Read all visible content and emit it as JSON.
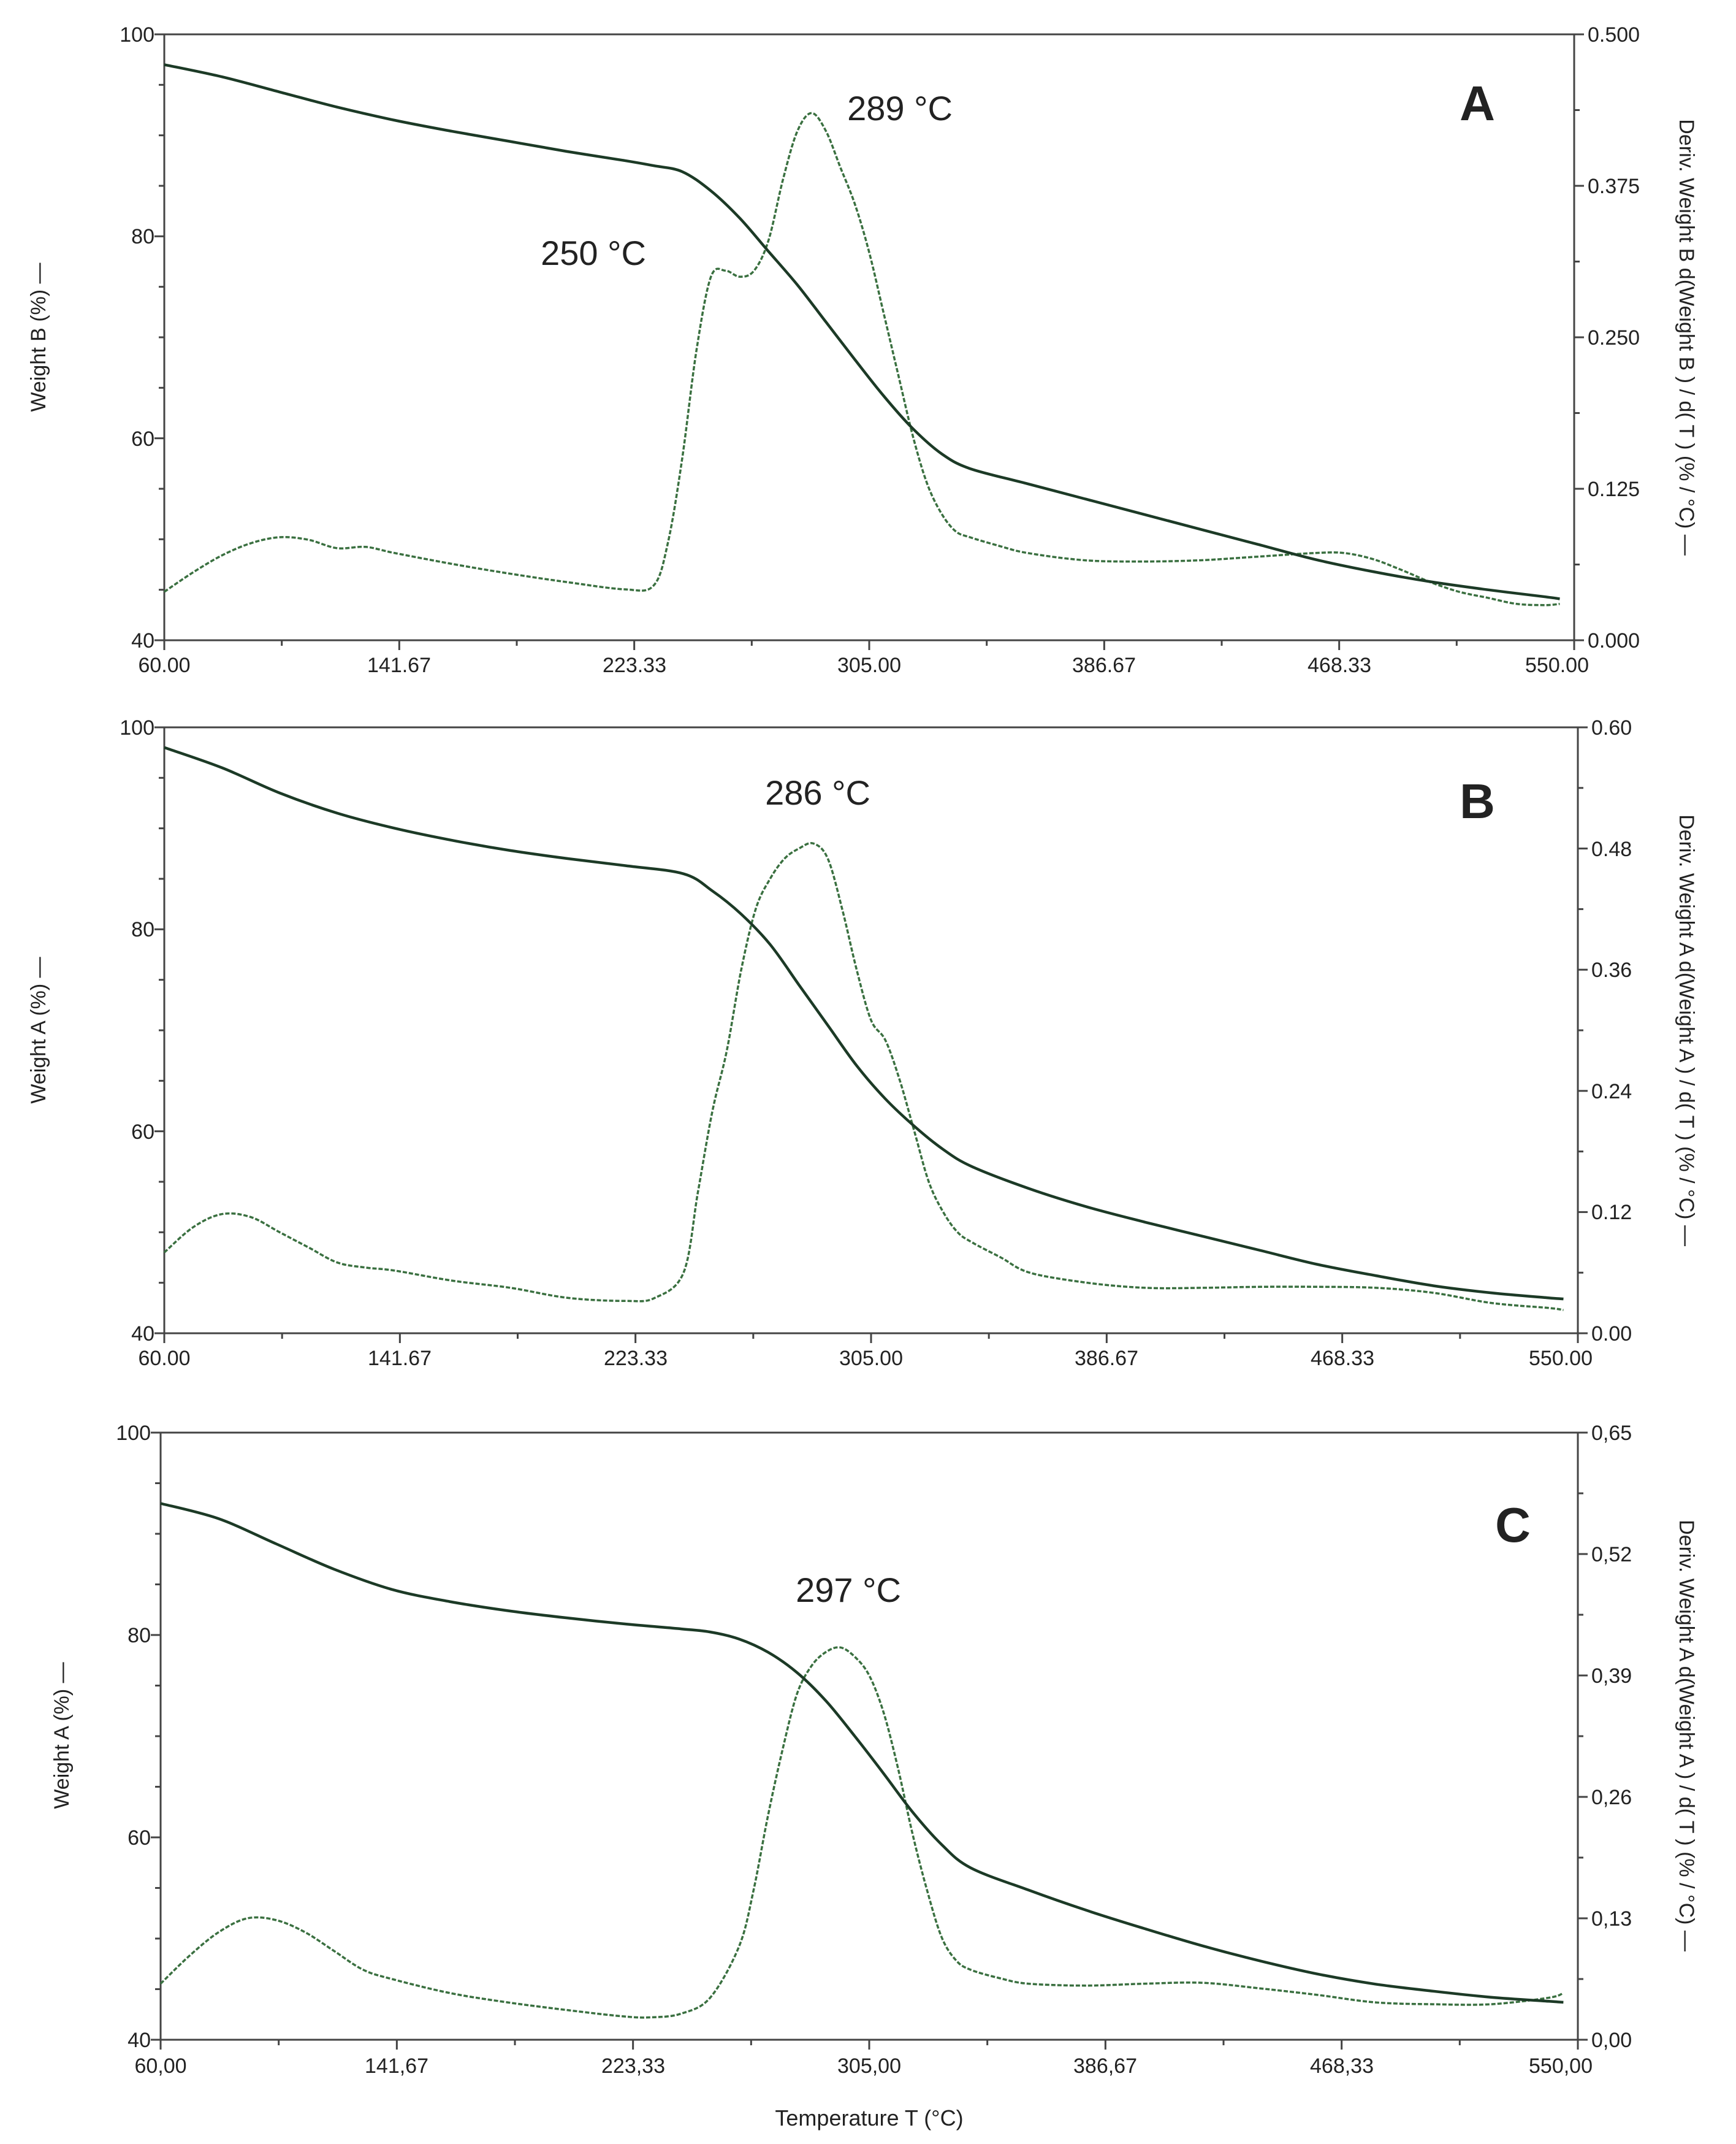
{
  "colors": {
    "weight": "#1c3a26",
    "deriv": "#3a7040",
    "axes": "#444444"
  },
  "chart_data": [
    {
      "type": "line",
      "panel": "A",
      "xlabel": "",
      "ylabel": "Weight B  (%) —",
      "y2label": "Deriv. Weight B d(Weight B ) / d( T ) (% / °C) —",
      "xlim": [
        60,
        550
      ],
      "ylim": [
        40,
        100
      ],
      "y2lim": [
        0,
        0.5
      ],
      "x_ticks": [
        60,
        141.67,
        223.33,
        305,
        386.67,
        468.33,
        550
      ],
      "x_tick_labels": [
        "60.00",
        "141.67",
        "223.33",
        "305.00",
        "386.67",
        "468.33",
        "550.00"
      ],
      "y_ticks": [
        40,
        60,
        80,
        100
      ],
      "y_tick_labels": [
        "40",
        "60",
        "80",
        "100"
      ],
      "y2_ticks": [
        0,
        0.125,
        0.25,
        0.375,
        0.5
      ],
      "y2_tick_labels": [
        "0.000",
        "0.125",
        "0.250",
        "0.375",
        "0.500"
      ],
      "annotations": [
        {
          "text": "289 °C",
          "x": 303,
          "y": 95.4
        },
        {
          "text": "250 °C",
          "x": 256,
          "y": 80.3
        }
      ],
      "series": [
        {
          "name": "Weight B",
          "axis": "left",
          "x": [
            60,
            80,
            100,
            120,
            140,
            160,
            180,
            200,
            220,
            230,
            240,
            250,
            260,
            270,
            280,
            290,
            300,
            310,
            320,
            330,
            340,
            360,
            380,
            400,
            420,
            440,
            460,
            480,
            500,
            520,
            540,
            545
          ],
          "y": [
            97,
            95.8,
            94.3,
            92.8,
            91.5,
            90.4,
            89.4,
            88.4,
            87.5,
            87,
            86.4,
            84.5,
            81.8,
            78.5,
            75.2,
            71.5,
            67.8,
            64.2,
            61,
            58.5,
            57,
            55.5,
            54,
            52.5,
            51,
            49.5,
            48,
            46.8,
            45.8,
            45,
            44.3,
            44.1
          ]
        },
        {
          "name": "Deriv. Weight B",
          "axis": "right",
          "x": [
            60,
            70,
            80,
            90,
            100,
            110,
            120,
            130,
            140,
            160,
            180,
            200,
            220,
            230,
            235,
            240,
            245,
            250,
            255,
            260,
            265,
            270,
            275,
            280,
            285,
            290,
            295,
            300,
            305,
            310,
            315,
            320,
            325,
            330,
            335,
            340,
            350,
            360,
            380,
            400,
            420,
            440,
            460,
            470,
            480,
            490,
            500,
            510,
            520,
            530,
            540,
            545
          ],
          "y": [
            0.04,
            0.056,
            0.07,
            0.08,
            0.085,
            0.083,
            0.076,
            0.077,
            0.072,
            0.063,
            0.055,
            0.048,
            0.042,
            0.045,
            0.08,
            0.15,
            0.24,
            0.3,
            0.305,
            0.3,
            0.305,
            0.33,
            0.38,
            0.42,
            0.435,
            0.42,
            0.39,
            0.36,
            0.32,
            0.27,
            0.22,
            0.17,
            0.13,
            0.105,
            0.09,
            0.085,
            0.078,
            0.072,
            0.066,
            0.065,
            0.066,
            0.069,
            0.072,
            0.072,
            0.067,
            0.058,
            0.048,
            0.04,
            0.035,
            0.03,
            0.029,
            0.03
          ]
        }
      ]
    },
    {
      "type": "line",
      "panel": "B",
      "xlabel": "",
      "ylabel": "Weight A  (%) —",
      "y2label": "Deriv. Weight A d(Weight A ) / d( T ) (% / °C) —",
      "xlim": [
        60,
        550
      ],
      "ylim": [
        40,
        100
      ],
      "y2lim": [
        0,
        0.6
      ],
      "x_ticks": [
        60,
        141.67,
        223.33,
        305,
        386.67,
        468.33,
        550
      ],
      "x_tick_labels": [
        "60.00",
        "141.67",
        "223.33",
        "305.00",
        "386.67",
        "468.33",
        "550.00"
      ],
      "y_ticks": [
        40,
        60,
        80,
        100
      ],
      "y_tick_labels": [
        "40",
        "60",
        "80",
        "100"
      ],
      "y2_ticks": [
        0,
        0.12,
        0.24,
        0.36,
        0.48,
        0.6
      ],
      "y2_tick_labels": [
        "0.00",
        "0.12",
        "0.24",
        "0.36",
        "0.48",
        "0.60"
      ],
      "annotations": [
        {
          "text": "286 °C",
          "x": 286,
          "y": 94
        }
      ],
      "series": [
        {
          "name": "Weight A",
          "axis": "left",
          "x": [
            60,
            80,
            100,
            120,
            140,
            160,
            180,
            200,
            220,
            240,
            250,
            260,
            270,
            280,
            290,
            300,
            310,
            320,
            330,
            340,
            360,
            380,
            400,
            420,
            440,
            460,
            480,
            500,
            520,
            540,
            545
          ],
          "y": [
            98,
            96,
            93.5,
            91.5,
            90,
            88.8,
            87.8,
            87,
            86.3,
            85.5,
            83.8,
            81.5,
            78.5,
            74.5,
            70.5,
            66.5,
            63.2,
            60.5,
            58.2,
            56.5,
            54.3,
            52.5,
            51,
            49.6,
            48.2,
            46.8,
            45.7,
            44.7,
            44,
            43.5,
            43.4
          ]
        },
        {
          "name": "Deriv. Weight A",
          "axis": "right",
          "x": [
            60,
            70,
            80,
            90,
            100,
            110,
            120,
            130,
            140,
            160,
            180,
            200,
            220,
            230,
            240,
            245,
            250,
            255,
            260,
            265,
            270,
            275,
            280,
            285,
            290,
            295,
            300,
            305,
            310,
            315,
            320,
            325,
            330,
            335,
            340,
            350,
            360,
            380,
            400,
            420,
            440,
            460,
            480,
            500,
            520,
            540,
            545
          ],
          "y": [
            0.08,
            0.105,
            0.118,
            0.115,
            0.1,
            0.085,
            0.07,
            0.065,
            0.062,
            0.052,
            0.045,
            0.035,
            0.032,
            0.035,
            0.06,
            0.14,
            0.22,
            0.28,
            0.36,
            0.42,
            0.45,
            0.47,
            0.48,
            0.485,
            0.47,
            0.42,
            0.36,
            0.31,
            0.29,
            0.25,
            0.2,
            0.15,
            0.12,
            0.1,
            0.09,
            0.075,
            0.06,
            0.05,
            0.045,
            0.045,
            0.046,
            0.046,
            0.045,
            0.04,
            0.03,
            0.025,
            0.023
          ]
        }
      ]
    },
    {
      "type": "line",
      "panel": "C",
      "xlabel": "Temperature  T (°C)",
      "ylabel": "Weight A  (%) —",
      "y2label": "Deriv. Weight A d(Weight A ) / d( T ) (% / °C) —",
      "xlim": [
        60,
        550
      ],
      "ylim": [
        40,
        100
      ],
      "y2lim": [
        0,
        0.65
      ],
      "x_ticks": [
        60,
        141.67,
        223.33,
        305,
        386.67,
        468.33,
        550
      ],
      "x_tick_labels": [
        "60,00",
        "141,67",
        "223,33",
        "305,00",
        "386,67",
        "468,33",
        "550,00"
      ],
      "y_ticks": [
        40,
        60,
        80,
        100
      ],
      "y_tick_labels": [
        "40",
        "60",
        "80",
        "100"
      ],
      "y2_ticks": [
        0,
        0.13,
        0.26,
        0.39,
        0.52,
        0.65
      ],
      "y2_tick_labels": [
        "0,00",
        "0,13",
        "0,26",
        "0,39",
        "0,52",
        "0,65"
      ],
      "annotations": [
        {
          "text": "297 °C",
          "x": 297,
          "y": 83.5
        }
      ],
      "series": [
        {
          "name": "Weight A",
          "axis": "left",
          "x": [
            60,
            80,
            100,
            120,
            140,
            160,
            180,
            200,
            220,
            240,
            250,
            260,
            270,
            280,
            290,
            300,
            310,
            320,
            330,
            340,
            360,
            380,
            400,
            420,
            440,
            460,
            480,
            500,
            520,
            540,
            545
          ],
          "y": [
            93,
            91.5,
            89,
            86.5,
            84.5,
            83.3,
            82.4,
            81.7,
            81.1,
            80.6,
            80.3,
            79.6,
            78.3,
            76.3,
            73.5,
            70,
            66.3,
            62.5,
            59.3,
            57,
            54.8,
            52.8,
            51,
            49.3,
            47.8,
            46.5,
            45.5,
            44.8,
            44.2,
            43.8,
            43.7
          ]
        },
        {
          "name": "Deriv. Weight A",
          "axis": "right",
          "x": [
            60,
            70,
            80,
            90,
            100,
            110,
            120,
            130,
            140,
            160,
            180,
            200,
            220,
            230,
            240,
            250,
            260,
            265,
            270,
            275,
            280,
            285,
            290,
            295,
            300,
            305,
            310,
            315,
            320,
            325,
            330,
            335,
            340,
            350,
            360,
            380,
            400,
            420,
            440,
            460,
            480,
            500,
            520,
            540,
            545
          ],
          "y": [
            0.06,
            0.09,
            0.115,
            0.13,
            0.128,
            0.115,
            0.095,
            0.075,
            0.065,
            0.05,
            0.04,
            0.032,
            0.025,
            0.024,
            0.028,
            0.045,
            0.1,
            0.16,
            0.24,
            0.31,
            0.37,
            0.4,
            0.415,
            0.42,
            0.41,
            0.39,
            0.35,
            0.29,
            0.22,
            0.16,
            0.11,
            0.085,
            0.075,
            0.066,
            0.06,
            0.058,
            0.06,
            0.061,
            0.055,
            0.048,
            0.04,
            0.038,
            0.038,
            0.045,
            0.05
          ]
        }
      ]
    }
  ]
}
